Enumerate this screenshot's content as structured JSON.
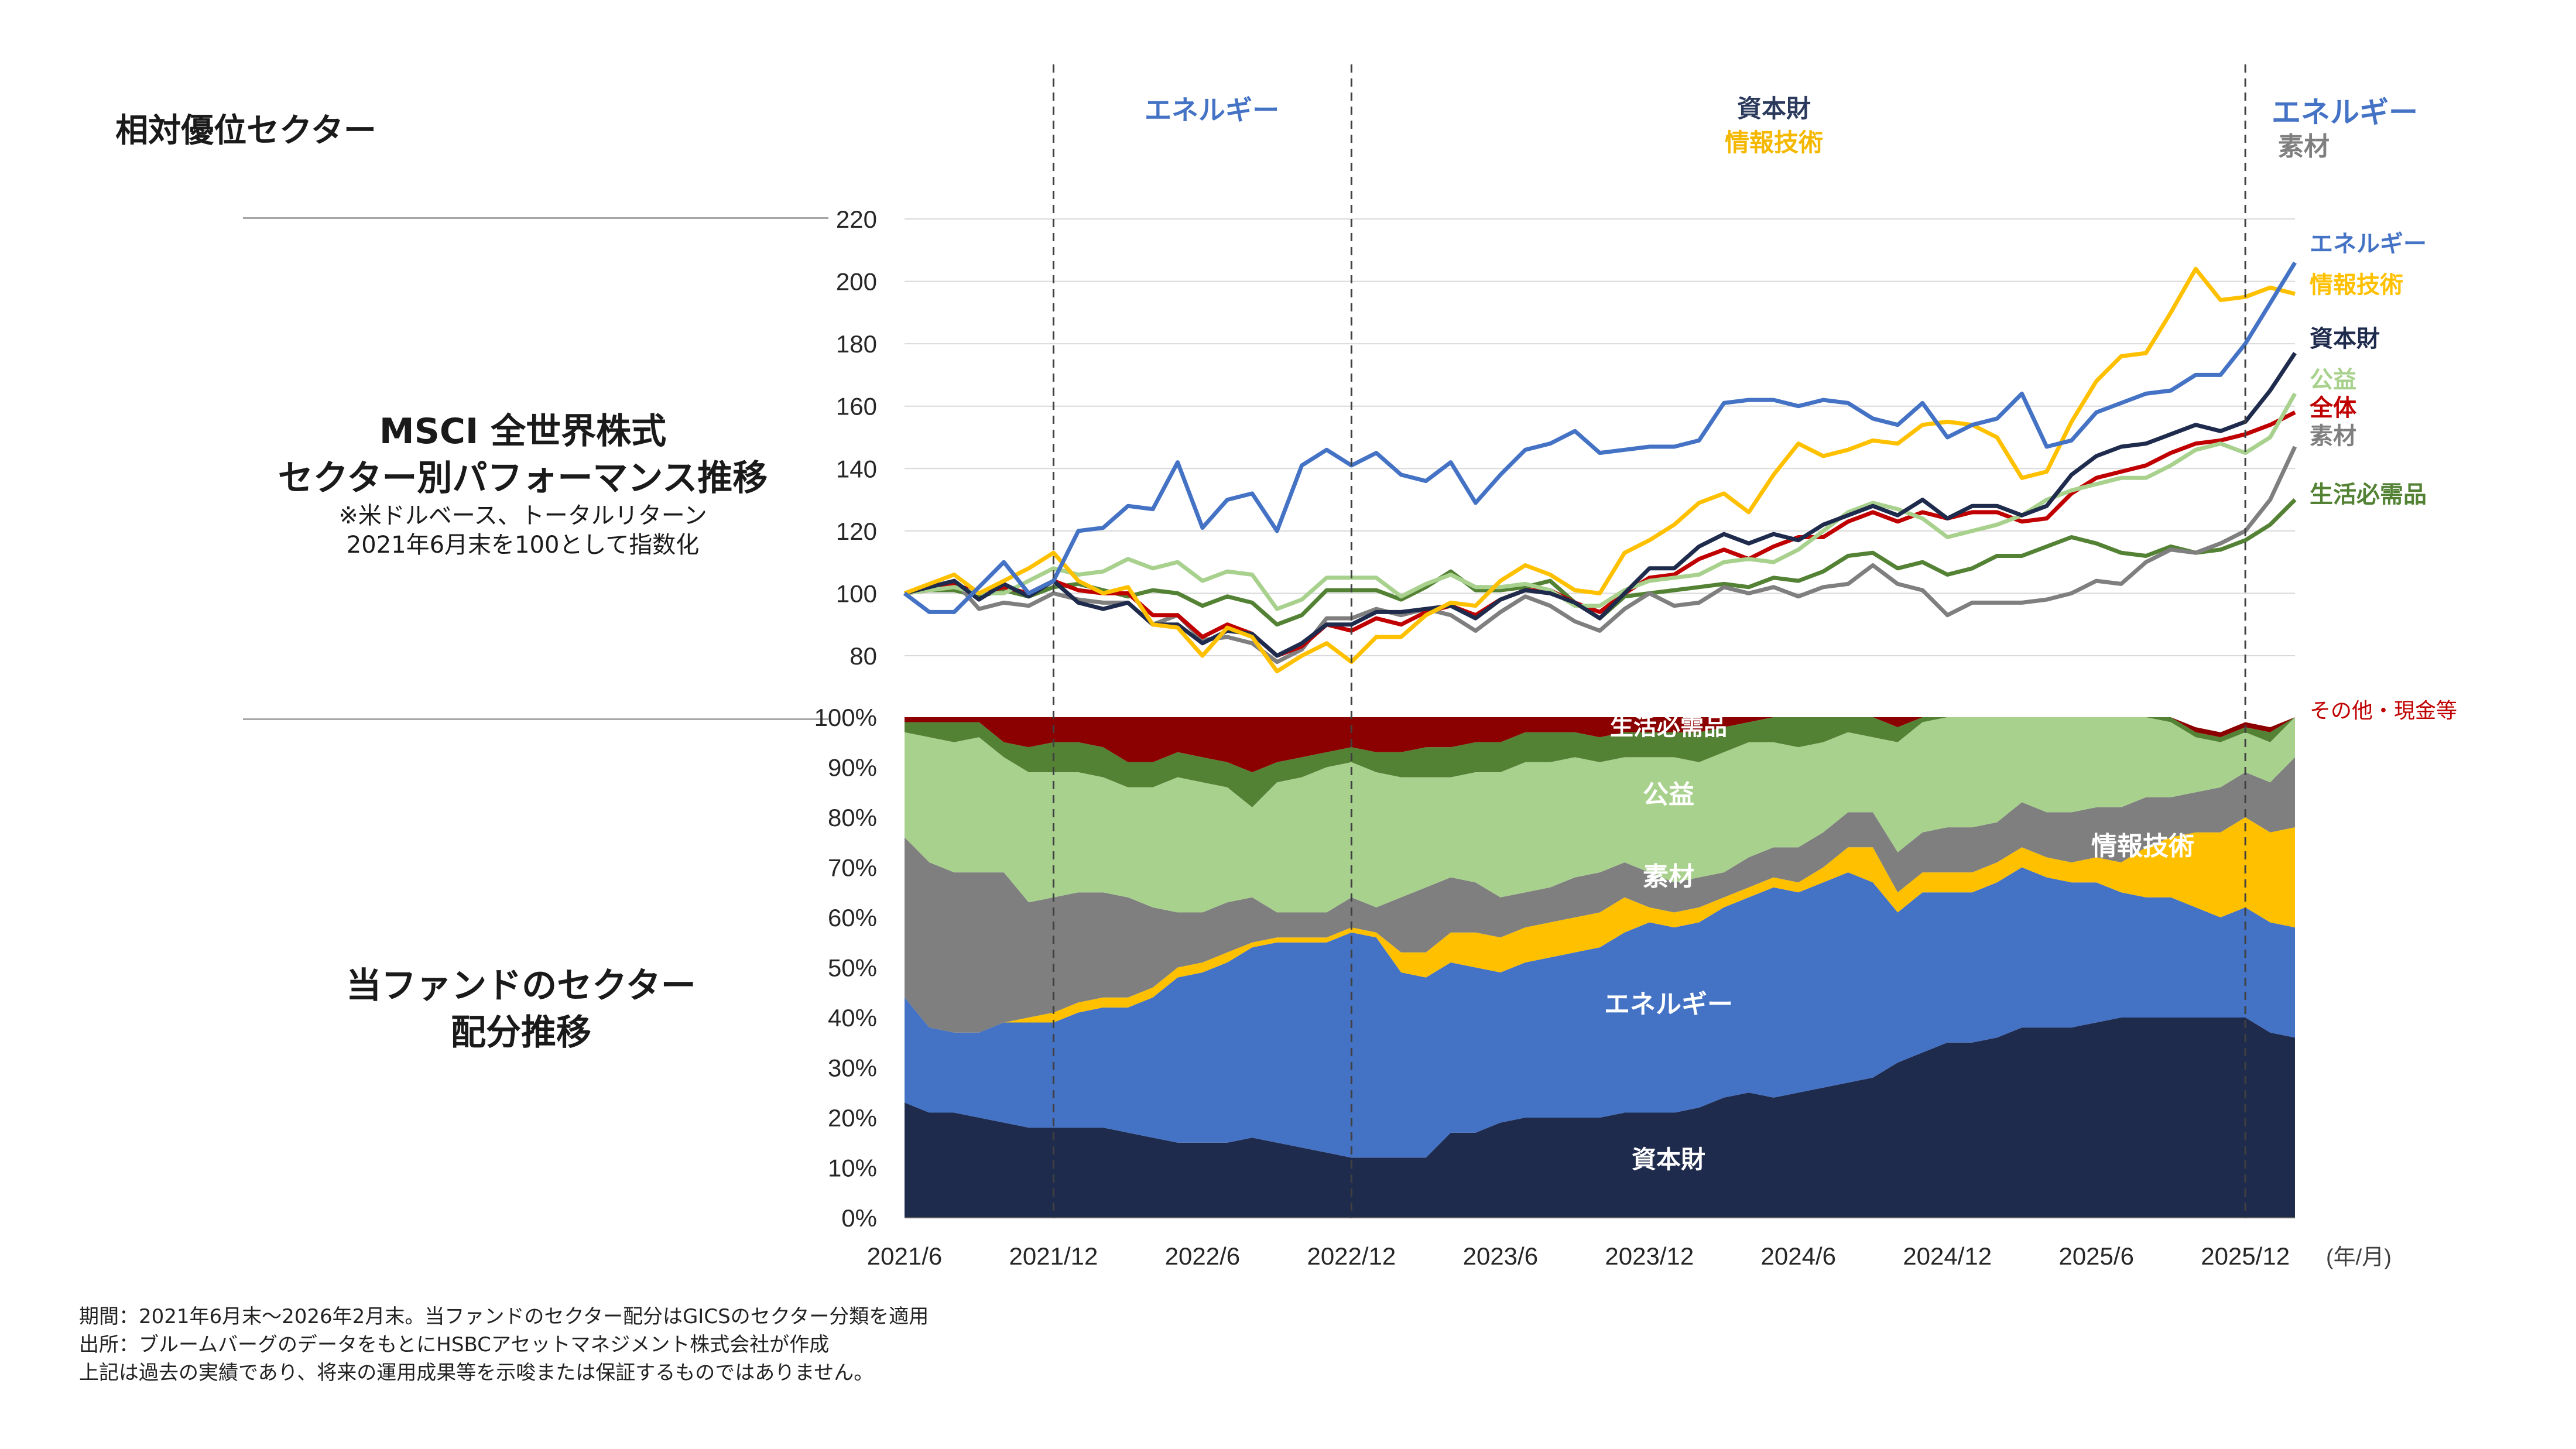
{
  "left_labels": {
    "relative_sector": "相対優位セクター",
    "msci_title_1": "MSCI 全世界株式",
    "msci_title_2": "セクター別パフォーマンス推移",
    "msci_note_1": "※米ドルベース、トータルリターン",
    "msci_note_2": "2021年6月末を100として指数化",
    "fund_title_1": "当ファンドのセクター",
    "fund_title_2": "配分推移"
  },
  "period_labels": [
    {
      "text": "エネルギー",
      "color": "#4472c4"
    },
    {
      "text": "資本財",
      "color": "#2b3a5c"
    },
    {
      "text": "情報技術",
      "color": "#f5b800"
    },
    {
      "text": "エネルギー",
      "color": "#4472c4"
    },
    {
      "text": "素材",
      "color": "#7f7f7f"
    }
  ],
  "unit_label": "(年/月)",
  "footnotes": [
    "期間：2021年6月末～2026年2月末。当ファンドのセクター配分はGICSのセクター分類を適用",
    "出所：ブルームバーグのデータをもとにHSBCアセットマネジメント株式会社が作成",
    "上記は過去の実績であり、将来の運用成果等を示唆または保証するものではありません。"
  ],
  "colors": {
    "energy": "#4472c4",
    "it": "#ffc000",
    "capital_goods": "#1f2b4d",
    "utilities": "#a9d18e",
    "total": "#c00000",
    "materials": "#7f7f7f",
    "staples": "#548235",
    "other_cash": "#8b0000"
  },
  "chart_data": [
    {
      "type": "line",
      "ylim": [
        80,
        220
      ],
      "yticks": [
        "80",
        "100",
        "120",
        "140",
        "160",
        "180",
        "200",
        "220"
      ],
      "x_count": 57,
      "series": [
        {
          "name": "エネルギー",
          "color": "#4472c4",
          "values": [
            100,
            94,
            94,
            102,
            110,
            100,
            104,
            120,
            121,
            128,
            127,
            142,
            121,
            130,
            132,
            120,
            141,
            146,
            141,
            145,
            138,
            136,
            142,
            129,
            138,
            146,
            148,
            152,
            145,
            146,
            147,
            147,
            149,
            161,
            162,
            162,
            160,
            162,
            161,
            156,
            154,
            161,
            150,
            154,
            156,
            164,
            147,
            149,
            158,
            161,
            164,
            165,
            170,
            170,
            180,
            193,
            206
          ]
        },
        {
          "name": "情報技術",
          "color": "#ffc000",
          "values": [
            100,
            103,
            106,
            100,
            104,
            108,
            113,
            104,
            100,
            102,
            90,
            89,
            80,
            89,
            86,
            75,
            80,
            84,
            78,
            86,
            86,
            93,
            97,
            96,
            104,
            109,
            106,
            101,
            100,
            113,
            117,
            122,
            129,
            132,
            126,
            138,
            148,
            144,
            146,
            149,
            148,
            154,
            155,
            154,
            150,
            137,
            139,
            155,
            168,
            176,
            177,
            190,
            204,
            194,
            195,
            198,
            196
          ]
        },
        {
          "name": "資本財",
          "color": "#1f2b4d",
          "values": [
            100,
            102,
            104,
            98,
            103,
            99,
            104,
            97,
            95,
            97,
            90,
            90,
            84,
            88,
            87,
            80,
            84,
            90,
            90,
            94,
            94,
            95,
            96,
            92,
            98,
            101,
            100,
            97,
            92,
            100,
            108,
            108,
            115,
            119,
            116,
            119,
            117,
            122,
            125,
            128,
            125,
            130,
            124,
            128,
            128,
            125,
            128,
            138,
            144,
            147,
            148,
            151,
            154,
            152,
            155,
            165,
            177
          ]
        },
        {
          "name": "公益",
          "color": "#a9d18e",
          "values": [
            100,
            101,
            102,
            100,
            100,
            104,
            108,
            106,
            107,
            111,
            108,
            110,
            104,
            107,
            106,
            95,
            98,
            105,
            105,
            105,
            99,
            103,
            106,
            102,
            102,
            103,
            101,
            96,
            96,
            101,
            104,
            105,
            106,
            110,
            111,
            110,
            114,
            120,
            126,
            129,
            127,
            124,
            118,
            120,
            122,
            125,
            130,
            133,
            135,
            137,
            137,
            141,
            146,
            148,
            145,
            150,
            164
          ]
        },
        {
          "name": "全体",
          "color": "#c00000",
          "values": [
            100,
            101,
            103,
            100,
            102,
            100,
            104,
            101,
            100,
            100,
            93,
            93,
            86,
            90,
            87,
            80,
            83,
            90,
            88,
            92,
            90,
            94,
            96,
            93,
            98,
            101,
            101,
            97,
            94,
            100,
            105,
            106,
            111,
            114,
            111,
            115,
            118,
            118,
            123,
            126,
            123,
            126,
            124,
            126,
            126,
            123,
            124,
            132,
            137,
            139,
            141,
            145,
            148,
            149,
            151,
            154,
            158
          ]
        },
        {
          "name": "素材",
          "color": "#7f7f7f",
          "values": [
            100,
            101,
            104,
            95,
            97,
            96,
            100,
            98,
            97,
            97,
            90,
            93,
            85,
            86,
            84,
            78,
            82,
            92,
            92,
            95,
            93,
            95,
            93,
            88,
            94,
            99,
            96,
            91,
            88,
            95,
            100,
            96,
            97,
            102,
            100,
            102,
            99,
            102,
            103,
            109,
            103,
            101,
            93,
            97,
            97,
            97,
            98,
            100,
            104,
            103,
            110,
            114,
            113,
            116,
            120,
            130,
            147
          ]
        },
        {
          "name": "生活必需品",
          "color": "#548235",
          "values": [
            100,
            101,
            101,
            99,
            101,
            99,
            102,
            103,
            101,
            99,
            101,
            100,
            96,
            99,
            97,
            90,
            93,
            101,
            101,
            101,
            98,
            102,
            107,
            101,
            101,
            102,
            104,
            97,
            92,
            99,
            100,
            101,
            102,
            103,
            102,
            105,
            104,
            107,
            112,
            113,
            108,
            110,
            106,
            108,
            112,
            112,
            115,
            118,
            116,
            113,
            112,
            115,
            113,
            114,
            117,
            122,
            130
          ]
        }
      ],
      "line_labels": [
        {
          "text": "エネルギー",
          "color": "#4472c4"
        },
        {
          "text": "情報技術",
          "color": "#ffc000"
        },
        {
          "text": "資本財",
          "color": "#1f2b4d"
        },
        {
          "text": "公益",
          "color": "#a9d18e"
        },
        {
          "text": "全体",
          "color": "#c00000"
        },
        {
          "text": "素材",
          "color": "#7f7f7f"
        },
        {
          "text": "生活必需品",
          "color": "#548235"
        }
      ]
    },
    {
      "type": "area",
      "ylim": [
        0,
        100
      ],
      "yticks": [
        "0%",
        "10%",
        "20%",
        "30%",
        "40%",
        "50%",
        "60%",
        "70%",
        "80%",
        "90%",
        "100%"
      ],
      "x_count": 57,
      "x_tick_labels": [
        "2021/6",
        "2021/12",
        "2022/6",
        "2022/12",
        "2023/6",
        "2023/12",
        "2024/6",
        "2024/12",
        "2025/6",
        "2025/12"
      ],
      "series": [
        {
          "name": "資本財",
          "color": "#1f2b4d",
          "values": [
            23,
            21,
            21,
            20,
            19,
            18,
            18,
            18,
            18,
            17,
            16,
            15,
            15,
            15,
            16,
            15,
            14,
            13,
            12,
            12,
            12,
            12,
            17,
            17,
            19,
            20,
            20,
            20,
            20,
            21,
            21,
            21,
            22,
            24,
            25,
            24,
            25,
            26,
            27,
            28,
            31,
            33,
            35,
            35,
            36,
            38,
            38,
            38,
            39,
            40,
            40,
            40,
            40,
            40,
            40,
            37,
            36
          ]
        },
        {
          "name": "エネルギー",
          "color": "#4472c4",
          "values": [
            21,
            17,
            16,
            17,
            20,
            21,
            21,
            23,
            24,
            25,
            28,
            33,
            34,
            36,
            38,
            40,
            41,
            42,
            45,
            44,
            37,
            36,
            34,
            33,
            30,
            31,
            32,
            33,
            34,
            36,
            38,
            37,
            37,
            38,
            39,
            42,
            40,
            41,
            42,
            39,
            30,
            32,
            30,
            30,
            31,
            32,
            30,
            29,
            28,
            25,
            24,
            24,
            22,
            20,
            22,
            22,
            22
          ]
        },
        {
          "name": "情報技術",
          "color": "#ffc000",
          "values": [
            0,
            0,
            0,
            0,
            0,
            1,
            2,
            2,
            2,
            2,
            2,
            2,
            2,
            2,
            1,
            1,
            1,
            1,
            1,
            1,
            4,
            5,
            6,
            7,
            7,
            7,
            7,
            7,
            7,
            7,
            3,
            3,
            3,
            2,
            2,
            2,
            2,
            3,
            5,
            7,
            4,
            4,
            4,
            4,
            4,
            4,
            4,
            4,
            5,
            6,
            10,
            12,
            15,
            17,
            18,
            18,
            20
          ]
        },
        {
          "name": "素材",
          "color": "#7f7f7f",
          "values": [
            32,
            33,
            32,
            32,
            30,
            23,
            23,
            22,
            21,
            20,
            16,
            11,
            10,
            10,
            9,
            5,
            5,
            5,
            6,
            5,
            11,
            13,
            11,
            10,
            8,
            7,
            7,
            8,
            8,
            7,
            7,
            6,
            6,
            5,
            6,
            6,
            7,
            7,
            7,
            7,
            8,
            8,
            9,
            9,
            8,
            9,
            9,
            10,
            10,
            11,
            10,
            8,
            8,
            9,
            9,
            10,
            14
          ]
        },
        {
          "name": "公益",
          "color": "#a9d18e",
          "values": [
            21,
            25,
            26,
            27,
            23,
            26,
            25,
            24,
            23,
            22,
            24,
            27,
            26,
            23,
            18,
            26,
            27,
            29,
            27,
            27,
            24,
            22,
            20,
            22,
            25,
            26,
            25,
            24,
            22,
            21,
            23,
            25,
            23,
            24,
            23,
            21,
            20,
            18,
            16,
            15,
            22,
            22,
            22,
            23,
            23,
            22,
            24,
            23,
            21,
            21,
            18,
            15,
            11,
            9,
            8,
            8,
            8
          ]
        },
        {
          "name": "生活必需品",
          "color": "#548235",
          "values": [
            2,
            3,
            4,
            3,
            3,
            5,
            6,
            6,
            6,
            5,
            5,
            5,
            5,
            5,
            7,
            4,
            4,
            3,
            3,
            4,
            5,
            6,
            6,
            6,
            6,
            6,
            6,
            5,
            5,
            5,
            5,
            5,
            6,
            5,
            4,
            5,
            6,
            5,
            5,
            4,
            3,
            2,
            2,
            2,
            1,
            1,
            1,
            1,
            1,
            1,
            1,
            1,
            1,
            1,
            1,
            2,
            1
          ]
        },
        {
          "name": "その他・現金等",
          "color": "#8b0000",
          "values": [
            1,
            1,
            1,
            1,
            5,
            6,
            5,
            5,
            6,
            9,
            9,
            7,
            8,
            9,
            11,
            9,
            8,
            7,
            6,
            7,
            7,
            6,
            6,
            5,
            5,
            3,
            3,
            3,
            4,
            3,
            3,
            3,
            3,
            2,
            1,
            0,
            0,
            0,
            0,
            0,
            2,
            3,
            3,
            2,
            2,
            5,
            0,
            0,
            1,
            1,
            1,
            1,
            1,
            1,
            1,
            1,
            1
          ]
        }
      ],
      "area_labels": [
        {
          "text": "生活必需品",
          "color": "#ffffff"
        },
        {
          "text": "公益",
          "color": "#ffffff"
        },
        {
          "text": "素材",
          "color": "#ffffff"
        },
        {
          "text": "エネルギー",
          "color": "#ffffff"
        },
        {
          "text": "資本財",
          "color": "#ffffff"
        },
        {
          "text": "情報技術",
          "color": "#ffffff"
        },
        {
          "text": "その他・現金等",
          "color": "#c00000"
        }
      ]
    }
  ]
}
